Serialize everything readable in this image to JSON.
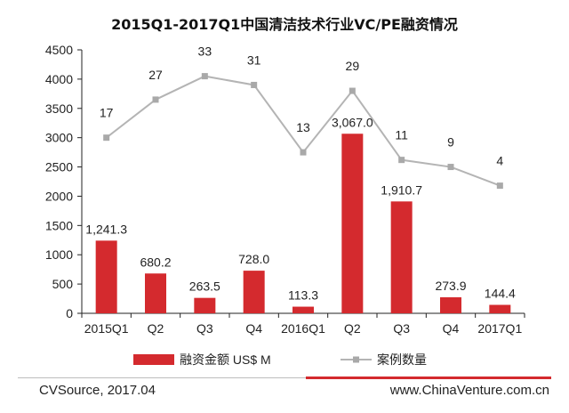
{
  "colors": {
    "bar": "#D42A2E",
    "line": "#B4B4B4",
    "marker": "#A9A9A9",
    "axis": "#222222"
  },
  "chart_data": {
    "type": "bar",
    "title": "2015Q1-2017Q1中国清洁技术行业VC/PE融资情况",
    "categories": [
      "2015Q1",
      "Q2",
      "Q3",
      "Q4",
      "2016Q1",
      "Q2",
      "Q3",
      "Q4",
      "2017Q1"
    ],
    "ylim": [
      0,
      4500
    ],
    "yticks": [
      0,
      500,
      1000,
      1500,
      2000,
      2500,
      3000,
      3500,
      4000,
      4500
    ],
    "grid": false,
    "legend_position": "bottom",
    "series": [
      {
        "name": "融资金额 US$ M",
        "type": "bar",
        "values": [
          1241.3,
          680.2,
          263.5,
          728.0,
          113.3,
          3067.0,
          1910.7,
          273.9,
          144.4
        ],
        "labels": [
          "1,241.3",
          "680.2",
          "263.5",
          "728.0",
          "113.3",
          "3,067.0",
          "1,910.7",
          "273.9",
          "144.4"
        ]
      },
      {
        "name": "案例数量",
        "type": "line",
        "values": [
          17,
          27,
          33,
          31,
          13,
          29,
          11,
          9,
          4
        ],
        "plotted_y": [
          3000,
          3650,
          4050,
          3900,
          2750,
          3800,
          2620,
          2500,
          2180
        ],
        "labels": [
          "17",
          "27",
          "33",
          "31",
          "13",
          "29",
          "11",
          "9",
          "4"
        ]
      }
    ]
  },
  "footer": {
    "source": "CVSource, 2017.04",
    "site": "www.ChinaVenture.com.cn"
  }
}
